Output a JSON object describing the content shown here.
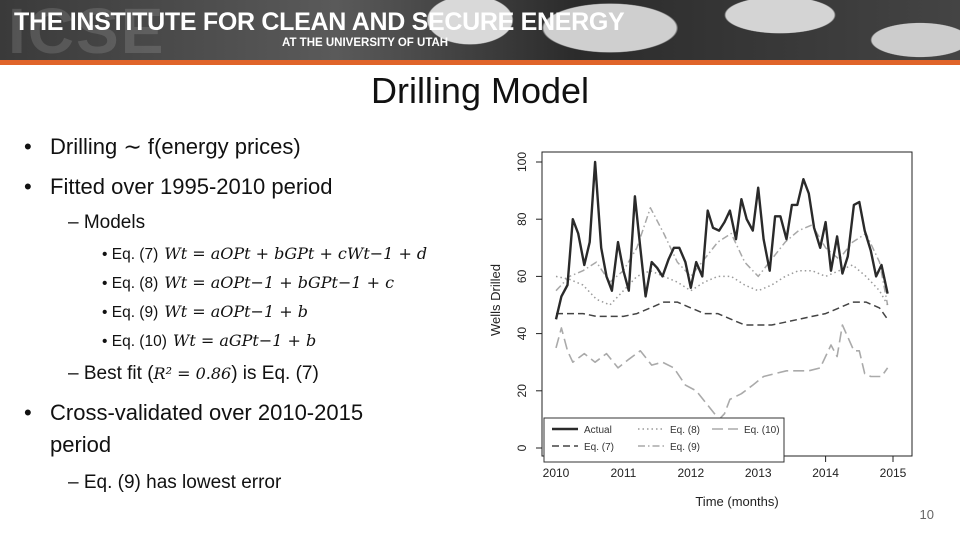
{
  "header": {
    "watermark": "ICSE",
    "institute_title": "THE INSTITUTE FOR CLEAN AND SECURE ENERGY",
    "institute_sub": "AT THE UNIVERSITY OF UTAH"
  },
  "slide": {
    "title": "Drilling Model",
    "page_number": "10",
    "bullets": {
      "b1": "Drilling ∼ f(energy prices)",
      "b2": "Fitted over 1995-2010 period",
      "models_label": "– Models",
      "eq7_label": "Eq. (7)",
      "eq8_label": "Eq. (8)",
      "eq9_label": "Eq. (9)",
      "eq10_label": "Eq. (10)",
      "best_fit_prefix": "– Best fit (",
      "best_fit_expr": "R² = 0.86",
      "best_fit_suffix": ") is Eq. (7)",
      "b3_line1": "Cross-validated over 2010-2015",
      "b3_line2": "period",
      "lowest_error": "– Eq. (9) has lowest error"
    },
    "equations": {
      "eq7": "Wt = aOPt + bGPt + cWt−1 + d",
      "eq8": "Wt = aOPt−1 + bGPt−1 + c",
      "eq9": "Wt = aOPt−1 + b",
      "eq10": "Wt = aGPt−1 + b"
    }
  },
  "chart_data": {
    "type": "line",
    "xlabel": "Time (months)",
    "ylabel": "Wells Drilled",
    "xlim": [
      2010,
      2015
    ],
    "ylim": [
      0,
      100
    ],
    "xticks": [
      "2010",
      "2011",
      "2012",
      "2013",
      "2014",
      "2015"
    ],
    "yticks": [
      "0",
      "20",
      "40",
      "60",
      "80",
      "100"
    ],
    "legend_position": "bottom-left",
    "series": [
      {
        "name": "Actual",
        "style": "solid-thick",
        "x": [
          2010.0,
          2010.08,
          2010.17,
          2010.25,
          2010.33,
          2010.42,
          2010.5,
          2010.58,
          2010.67,
          2010.75,
          2010.83,
          2010.92,
          2011.0,
          2011.08,
          2011.17,
          2011.25,
          2011.33,
          2011.42,
          2011.5,
          2011.58,
          2011.67,
          2011.75,
          2011.83,
          2011.92,
          2012.0,
          2012.08,
          2012.17,
          2012.25,
          2012.33,
          2012.42,
          2012.5,
          2012.58,
          2012.67,
          2012.75,
          2012.83,
          2012.92,
          2013.0,
          2013.08,
          2013.17,
          2013.25,
          2013.33,
          2013.42,
          2013.5,
          2013.58,
          2013.67,
          2013.75,
          2013.83,
          2013.92,
          2014.0,
          2014.08,
          2014.17,
          2014.25,
          2014.33,
          2014.42,
          2014.5,
          2014.58,
          2014.67,
          2014.75,
          2014.83,
          2014.92
        ],
        "y": [
          45,
          53,
          57,
          80,
          75,
          64,
          72,
          100,
          70,
          60,
          55,
          72,
          62,
          55,
          88,
          70,
          53,
          65,
          63,
          60,
          66,
          70,
          70,
          65,
          56,
          65,
          60,
          83,
          77,
          76,
          79,
          83,
          73,
          87,
          80,
          76,
          91,
          73,
          62,
          81,
          81,
          73,
          85,
          85,
          94,
          89,
          77,
          70,
          79,
          62,
          74,
          61,
          67,
          85,
          86,
          76,
          69,
          60,
          64,
          54
        ]
      },
      {
        "name": "Eq. (7)",
        "style": "dashed",
        "x": [
          2010.0,
          2010.2,
          2010.4,
          2010.6,
          2010.8,
          2011.0,
          2011.2,
          2011.4,
          2011.6,
          2011.8,
          2012.0,
          2012.2,
          2012.4,
          2012.6,
          2012.8,
          2013.0,
          2013.2,
          2013.4,
          2013.6,
          2013.8,
          2014.0,
          2014.2,
          2014.4,
          2014.6,
          2014.8,
          2014.92
        ],
        "y": [
          47,
          47,
          47,
          46,
          46,
          46,
          47,
          49,
          51,
          51,
          49,
          47,
          47,
          45,
          43,
          43,
          43,
          44,
          45,
          46,
          47,
          49,
          51,
          51,
          49,
          45
        ]
      },
      {
        "name": "Eq. (8)",
        "style": "dotted",
        "x": [
          2010.0,
          2010.2,
          2010.4,
          2010.6,
          2010.8,
          2011.0,
          2011.2,
          2011.4,
          2011.6,
          2011.8,
          2012.0,
          2012.2,
          2012.4,
          2012.6,
          2012.8,
          2013.0,
          2013.2,
          2013.4,
          2013.6,
          2013.8,
          2014.0,
          2014.2,
          2014.4,
          2014.6,
          2014.8,
          2014.92
        ],
        "y": [
          60,
          59,
          57,
          52,
          50,
          55,
          60,
          62,
          60,
          58,
          55,
          58,
          60,
          60,
          57,
          55,
          57,
          60,
          62,
          62,
          60,
          62,
          64,
          60,
          55,
          50
        ]
      },
      {
        "name": "Eq. (9)",
        "style": "dot-dash",
        "x": [
          2010.0,
          2010.2,
          2010.4,
          2010.6,
          2010.8,
          2011.0,
          2011.2,
          2011.4,
          2011.6,
          2011.8,
          2012.0,
          2012.2,
          2012.4,
          2012.6,
          2012.8,
          2013.0,
          2013.2,
          2013.4,
          2013.6,
          2013.8,
          2014.0,
          2014.2,
          2014.4,
          2014.6,
          2014.8,
          2014.92
        ],
        "y": [
          55,
          60,
          62,
          65,
          58,
          62,
          70,
          84,
          75,
          65,
          60,
          66,
          72,
          75,
          65,
          60,
          66,
          72,
          76,
          78,
          70,
          66,
          72,
          75,
          65,
          50
        ]
      },
      {
        "name": "Eq. (10)",
        "style": "long-dash",
        "x": [
          2010.0,
          2010.08,
          2010.17,
          2010.25,
          2010.42,
          2010.58,
          2010.75,
          2010.92,
          2011.08,
          2011.25,
          2011.42,
          2011.58,
          2011.75,
          2011.92,
          2012.08,
          2012.25,
          2012.42,
          2012.5,
          2012.58,
          2012.75,
          2012.92,
          2013.08,
          2013.25,
          2013.42,
          2013.58,
          2013.75,
          2013.92,
          2014.08,
          2014.17,
          2014.25,
          2014.42,
          2014.5,
          2014.58,
          2014.67,
          2014.83,
          2014.92
        ],
        "y": [
          35,
          42,
          34,
          30,
          33,
          30,
          33,
          28,
          31,
          34,
          29,
          30,
          28,
          22,
          20,
          15,
          10,
          12,
          17,
          19,
          22,
          25,
          26,
          27,
          27,
          27,
          28,
          36,
          32,
          43,
          34,
          34,
          26,
          25,
          25,
          28
        ]
      }
    ]
  }
}
